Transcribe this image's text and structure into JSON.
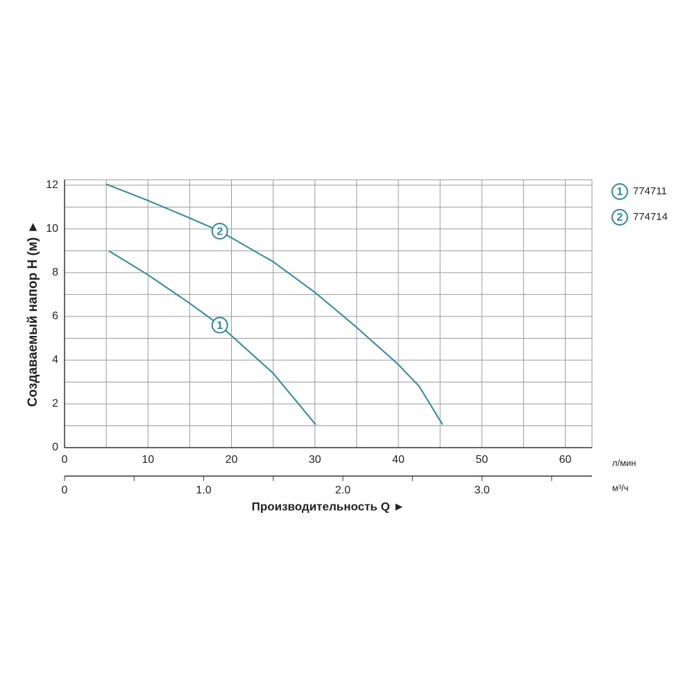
{
  "chart_data": {
    "type": "line",
    "y_label": "Создаваемый напор Н (м) ►",
    "x_label": "Производительность Q ►",
    "x_unit": "л/мин",
    "x2_unit": "м³/ч",
    "xlim": [
      0,
      63.2
    ],
    "xticks": [
      0,
      10,
      20,
      30,
      40,
      50,
      60
    ],
    "x_minor_grid": [
      5,
      15,
      25,
      35,
      45,
      55
    ],
    "x2lim": [
      0,
      3.79
    ],
    "x2ticks": [
      0,
      {
        "value": 1.0,
        "label": "1.0"
      },
      {
        "value": 2.0,
        "label": "2.0"
      },
      {
        "value": 3.0,
        "label": "3.0"
      }
    ],
    "x2_minor_ticks": [
      0.5,
      1.5,
      2.5,
      3.5
    ],
    "ylim": [
      0,
      12.25
    ],
    "yticks": [
      0,
      2,
      4,
      6,
      8,
      10,
      12
    ],
    "y_minor_grid": [
      1,
      3,
      5,
      7,
      9,
      11
    ],
    "grid": true,
    "legend": "right",
    "series": [
      {
        "name": "774711",
        "marker": "1",
        "color": "#2a8c9a",
        "x": [
          5.3,
          10,
          15,
          18.6,
          25,
          30.1
        ],
        "values": [
          9.0,
          7.9,
          6.6,
          5.6,
          3.4,
          1.05
        ]
      },
      {
        "name": "774714",
        "marker": "2",
        "color": "#2a8c9a",
        "x": [
          5,
          10,
          15,
          18.6,
          25,
          30,
          35,
          40,
          42.5,
          45.3
        ],
        "values": [
          12.05,
          11.3,
          10.5,
          9.9,
          8.5,
          7.1,
          5.5,
          3.8,
          2.8,
          1.05
        ]
      }
    ]
  }
}
